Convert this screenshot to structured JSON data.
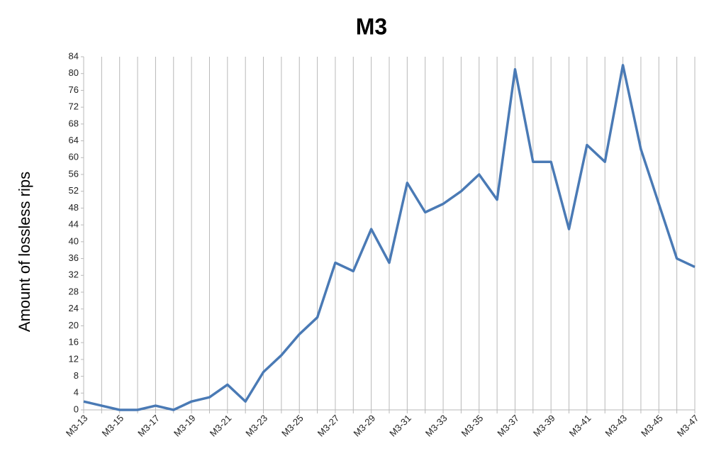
{
  "chart_data": {
    "type": "line",
    "title": "M3",
    "y_label": "Amount of lossless rips",
    "categories": [
      "M3-13",
      null,
      "M3-15",
      null,
      "M3-17",
      null,
      "M3-19",
      null,
      "M3-21",
      null,
      "M3-23",
      null,
      "M3-25",
      null,
      "M3-27",
      null,
      "M3-29",
      null,
      "M3-31",
      null,
      "M3-33",
      null,
      "M3-35",
      null,
      "M3-37",
      null,
      "M3-39",
      null,
      "M3-41",
      null,
      "M3-43",
      null,
      "M3-45",
      null,
      "M3-47"
    ],
    "values": [
      2,
      1,
      0,
      0,
      1,
      0,
      2,
      3,
      6,
      2,
      9,
      13,
      18,
      22,
      35,
      33,
      43,
      35,
      54,
      47,
      49,
      52,
      56,
      50,
      81,
      59,
      59,
      43,
      63,
      59,
      82,
      62,
      49,
      36,
      34
    ],
    "color": "#4a7ab5",
    "ylim": [
      0,
      84
    ],
    "yticks": [
      0,
      4,
      8,
      12,
      16,
      20,
      24,
      28,
      32,
      36,
      40,
      44,
      48,
      52,
      56,
      60,
      64,
      68,
      72,
      76,
      80,
      84
    ],
    "grid": "x"
  }
}
